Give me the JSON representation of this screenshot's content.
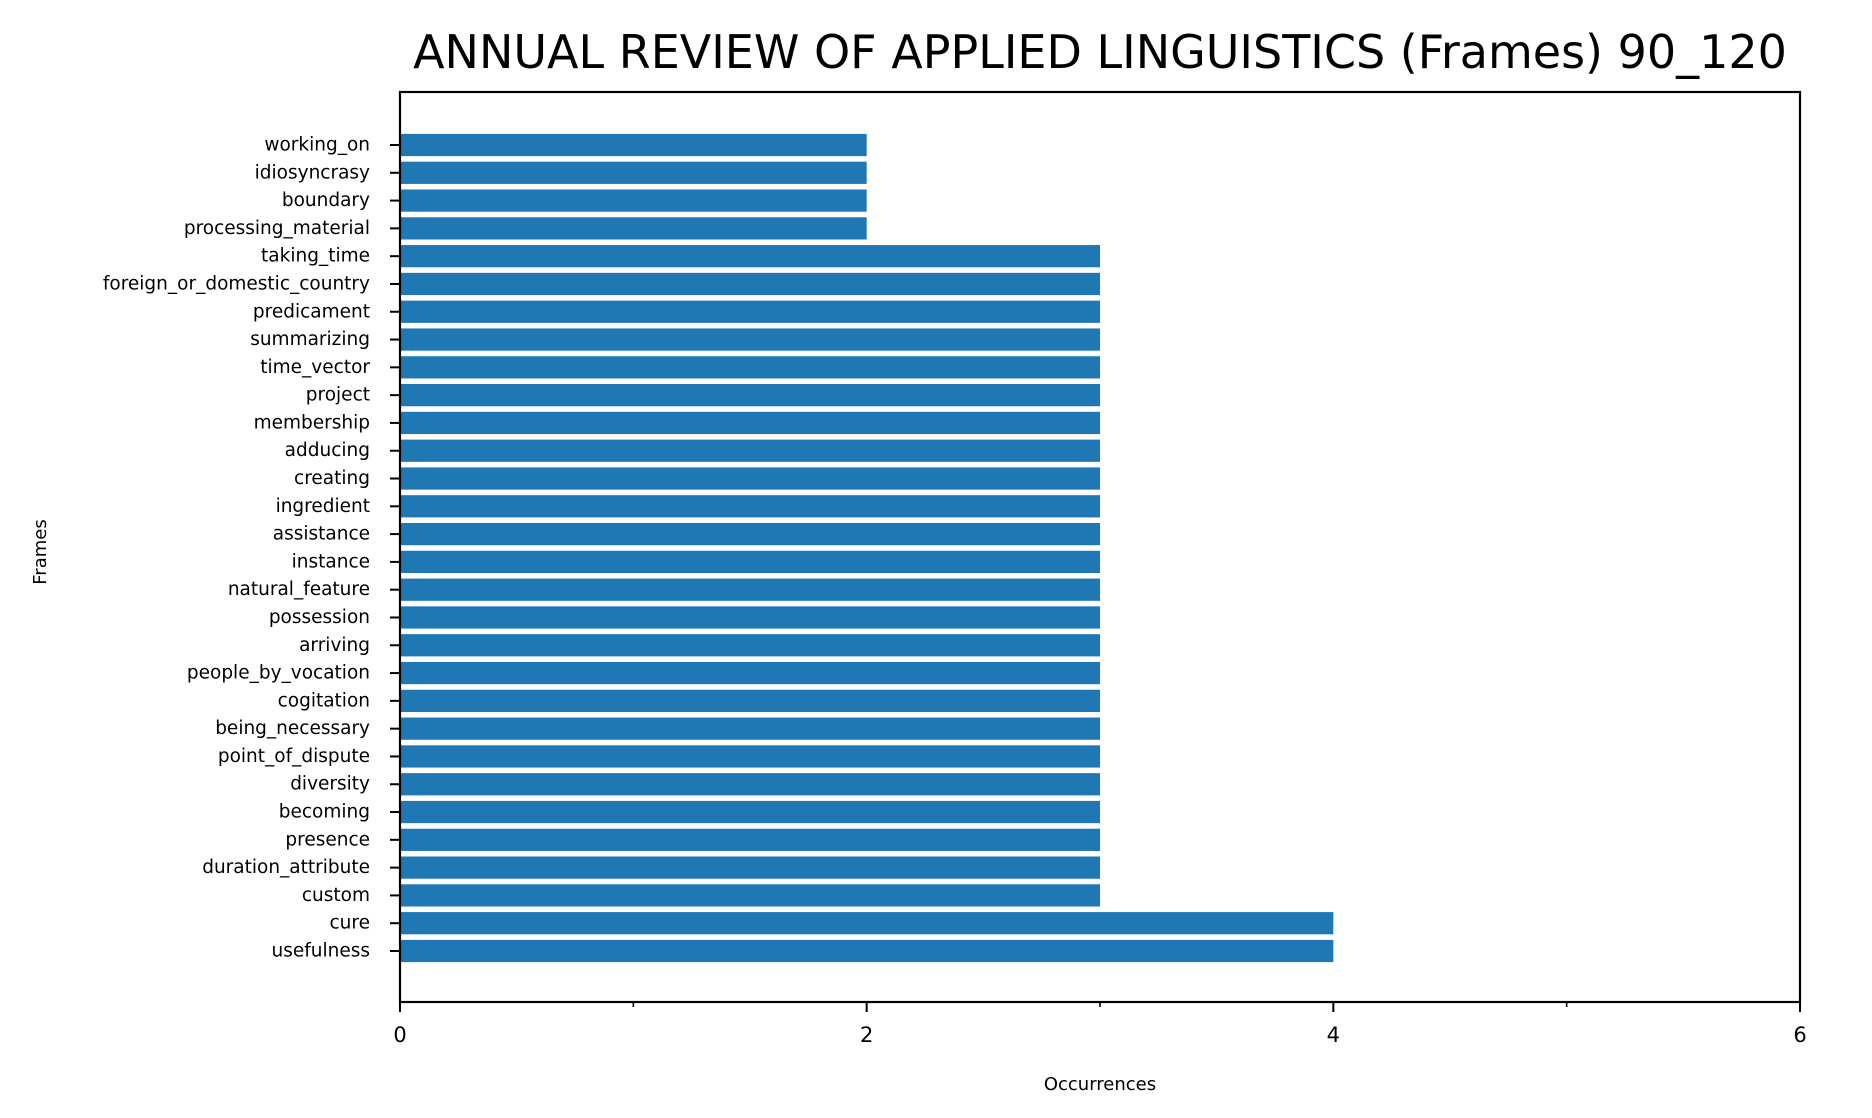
{
  "chart_data": {
    "type": "bar",
    "orientation": "horizontal",
    "title": "ANNUAL REVIEW OF APPLIED LINGUISTICS (Frames) 90_120",
    "xlabel": "Occurrences",
    "ylabel": "Frames",
    "xlim": [
      0,
      6
    ],
    "x_ticks": [
      0,
      2,
      4,
      6
    ],
    "x_minor_ticks": [
      1,
      3,
      5
    ],
    "grid": false,
    "bar_color": "#1f77b4",
    "categories": [
      "usefulness",
      "cure",
      "custom",
      "duration_attribute",
      "presence",
      "becoming",
      "diversity",
      "point_of_dispute",
      "being_necessary",
      "cogitation",
      "people_by_vocation",
      "arriving",
      "possession",
      "natural_feature",
      "instance",
      "assistance",
      "ingredient",
      "creating",
      "adducing",
      "membership",
      "project",
      "time_vector",
      "summarizing",
      "predicament",
      "foreign_or_domestic_country",
      "taking_time",
      "processing_material",
      "boundary",
      "idiosyncrasy",
      "working_on"
    ],
    "values": [
      4,
      4,
      3,
      3,
      3,
      3,
      3,
      3,
      3,
      3,
      3,
      3,
      3,
      3,
      3,
      3,
      3,
      3,
      3,
      3,
      3,
      3,
      3,
      3,
      3,
      3,
      2,
      2,
      2,
      2
    ]
  }
}
